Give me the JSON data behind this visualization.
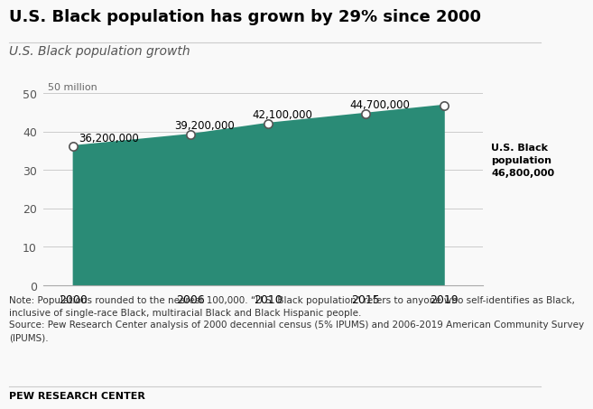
{
  "title": "U.S. Black population has grown by 29% since 2000",
  "subtitle": "U.S. Black population growth",
  "years": [
    2000,
    2006,
    2010,
    2015,
    2019
  ],
  "values": [
    36200000,
    39200000,
    42100000,
    44700000,
    46800000
  ],
  "point_labels": [
    "36,200,000",
    "39,200,000",
    "42,100,000",
    "44,700,000",
    "46,800,000"
  ],
  "area_color": "#2a8b76",
  "line_color": "#2a8b76",
  "marker_facecolor": "white",
  "marker_edgecolor": "#555555",
  "yticks_millions": [
    0,
    10,
    20,
    30,
    40,
    50
  ],
  "ylim_max": 55000000,
  "xlim": [
    1998.5,
    2021.0
  ],
  "annotation_last_bold": "U.S. Black\npopulation\n46,800,000",
  "note_text": "Note: Populations rounded to the nearest 100,000. “U.S. Black population” refers to anyone who self-identifies as Black,\ninclusive of single-race Black, multiracial Black and Black Hispanic people.\nSource: Pew Research Center analysis of 2000 decennial census (5% IPUMS) and 2006-2019 American Community Survey\n(IPUMS).",
  "footer": "PEW RESEARCH CENTER",
  "bg_color": "#f9f9f9",
  "grid_color": "#cccccc",
  "title_fontsize": 13,
  "subtitle_fontsize": 10,
  "label_fontsize": 8.5,
  "note_fontsize": 7.5,
  "footer_fontsize": 8,
  "tick_fontsize": 9
}
